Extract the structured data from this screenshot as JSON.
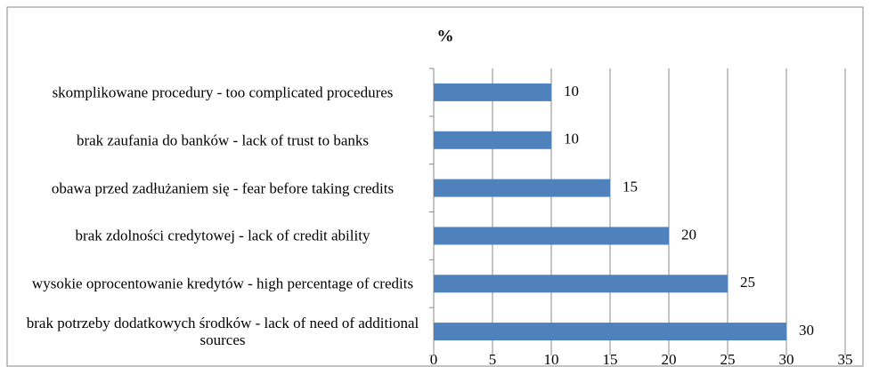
{
  "chart_data": {
    "type": "barh",
    "title": "%",
    "categories": [
      "skomplikowane procedury - too complicated procedures",
      "brak zaufania do banków - lack of trust to banks",
      "obawa przed zadłużaniem się - fear before taking credits",
      "brak zdolności credytowej - lack of credit ability",
      "wysokie oprocentowanie kredytów - high percentage of credits",
      "brak potrzeby dodatkowych środków - lack of need of additional sources"
    ],
    "values": [
      10,
      10,
      15,
      20,
      25,
      30
    ],
    "color": "#4f81bd",
    "xlim": [
      0,
      35
    ],
    "xticks": [
      0,
      5,
      10,
      15,
      20,
      25,
      30,
      35
    ],
    "grid": true
  }
}
